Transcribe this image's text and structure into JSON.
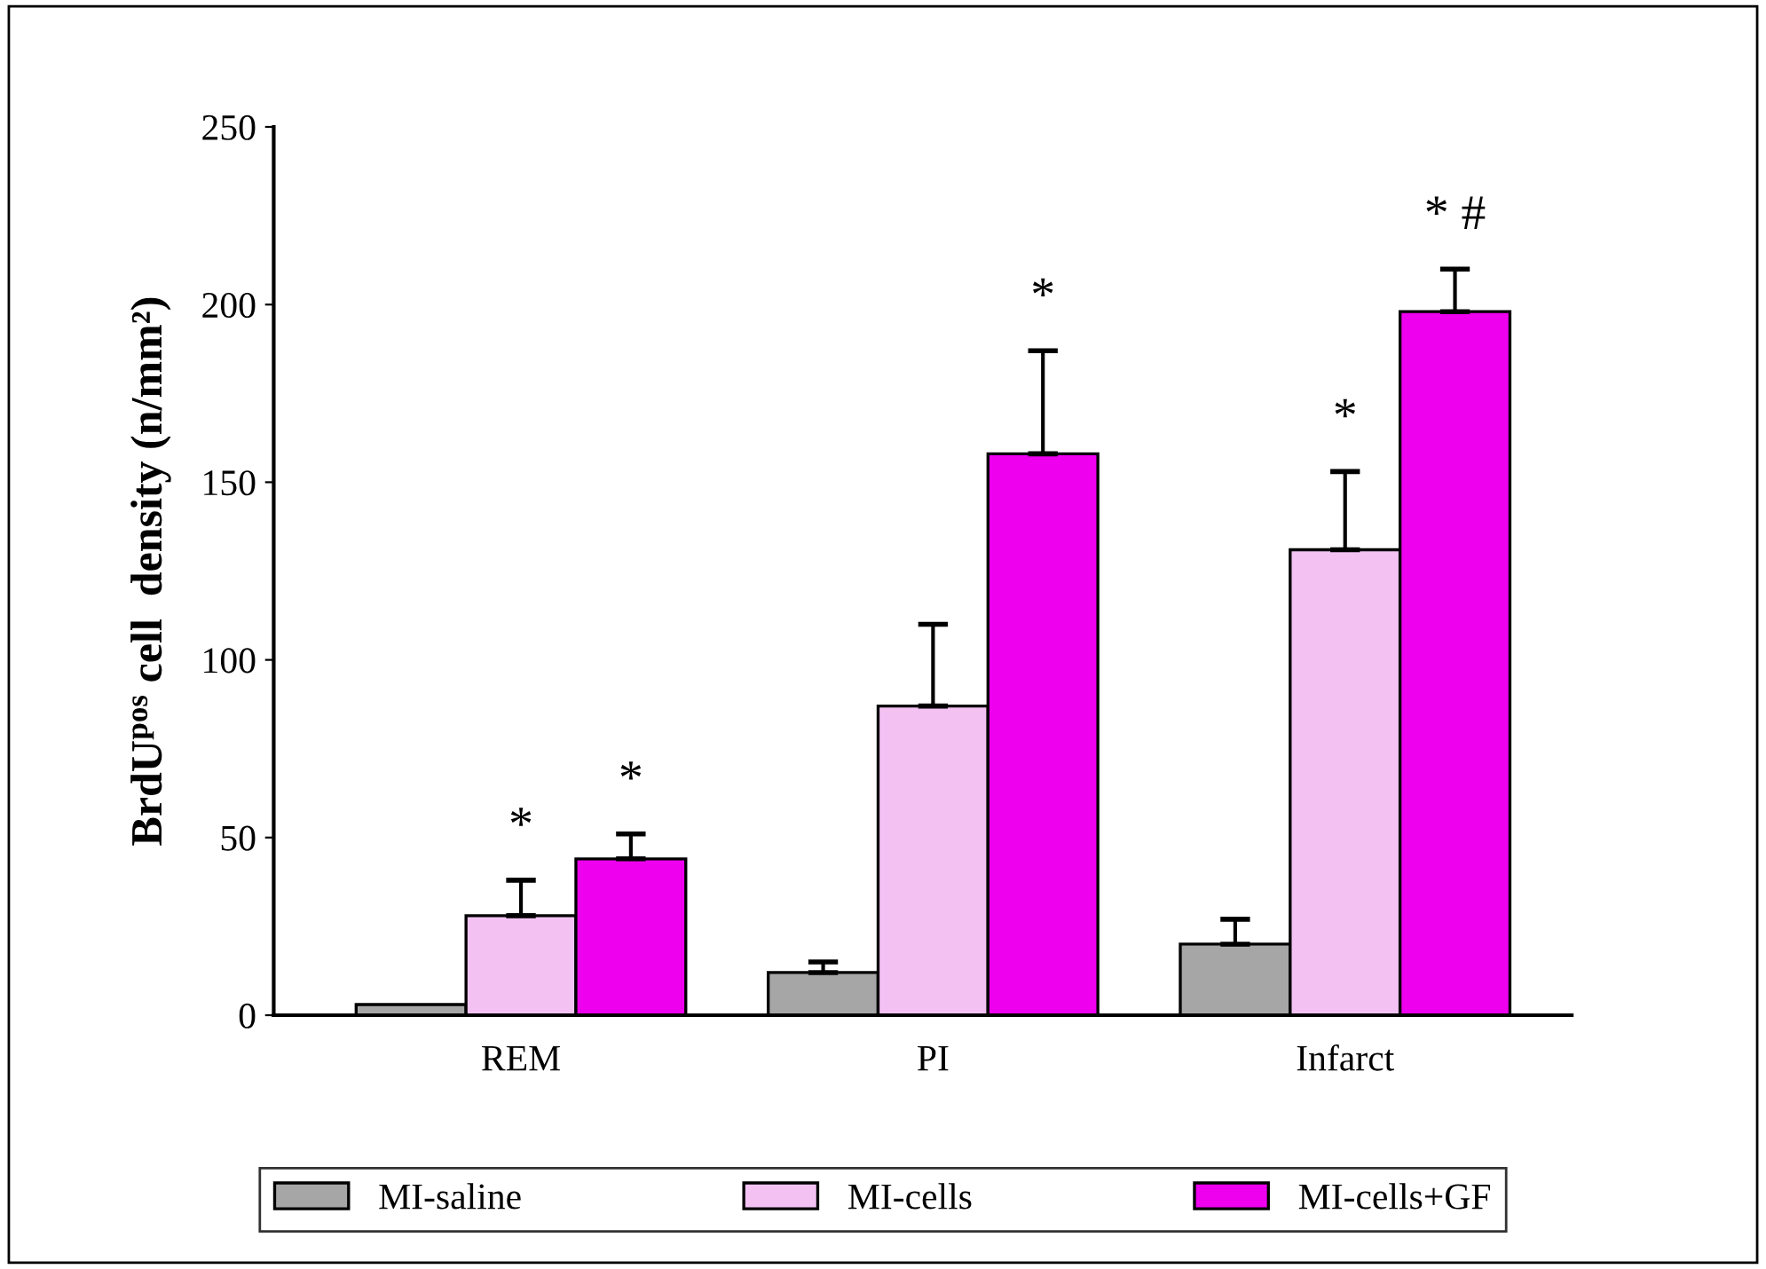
{
  "chart_data": {
    "type": "bar",
    "ylabel": "BrdU$^{pos}$ cell  density (n/mm²)",
    "categories": [
      "REM",
      "PI",
      "Infarct"
    ],
    "series": [
      {
        "name": "MI-saline",
        "color": "#a6a6a6",
        "values": [
          3,
          12,
          20
        ],
        "errors": [
          null,
          3,
          7
        ],
        "value_labels": [
          null,
          null,
          null
        ]
      },
      {
        "name": "MI-cells",
        "color": "#f3c2f3",
        "values": [
          28,
          87,
          131
        ],
        "errors": [
          10,
          23,
          22
        ],
        "value_labels": [
          "*",
          null,
          "*"
        ]
      },
      {
        "name": "MI-cells+GF",
        "color": "#ee00ee",
        "values": [
          44,
          158,
          198
        ],
        "errors": [
          7,
          29,
          12
        ],
        "value_labels": [
          "*",
          "*",
          "* #"
        ]
      }
    ],
    "ylim": [
      0,
      250
    ],
    "yticks": [
      0,
      50,
      100,
      150,
      200,
      250
    ],
    "grid": false,
    "legend": "bottom"
  }
}
